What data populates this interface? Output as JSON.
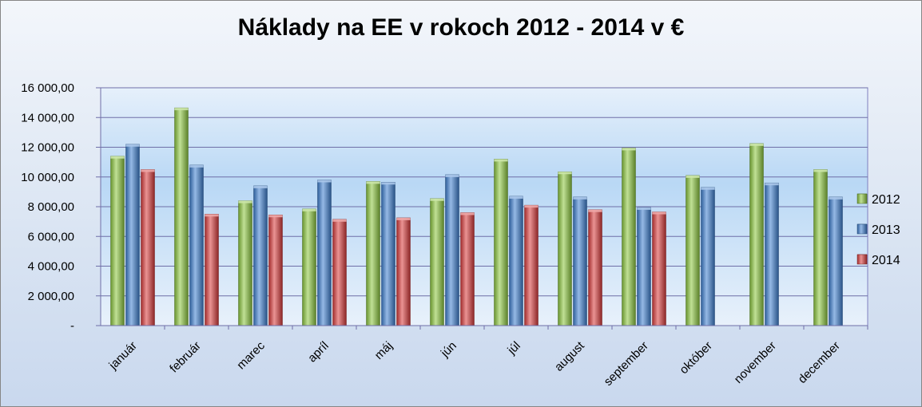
{
  "chart_data": {
    "type": "bar",
    "title": "Náklady na EE v rokoch 2012 - 2014 v €",
    "xlabel": "",
    "ylabel": "",
    "ylim": [
      0,
      16000
    ],
    "y_ticks": [
      0,
      2000,
      4000,
      6000,
      8000,
      10000,
      12000,
      14000,
      16000
    ],
    "y_tick_labels": [
      "-",
      "2 000,00",
      "4 000,00",
      "6 000,00",
      "8 000,00",
      "10 000,00",
      "12 000,00",
      "14 000,00",
      "16 000,00"
    ],
    "categories": [
      "január",
      "február",
      "marec",
      "apríl",
      "máj",
      "jún",
      "júl",
      "august",
      "september",
      "október",
      "november",
      "december"
    ],
    "series": [
      {
        "name": "2012",
        "color": "#8cc63f",
        "values": [
          11400,
          14650,
          8400,
          7850,
          9700,
          8550,
          11200,
          10350,
          11950,
          10100,
          12250,
          10500
        ]
      },
      {
        "name": "2013",
        "color": "#3f7fcf",
        "values": [
          12200,
          10800,
          9400,
          9800,
          9650,
          10150,
          8700,
          8650,
          7950,
          9300,
          9600,
          8650
        ]
      },
      {
        "name": "2014",
        "color": "#d83b3b",
        "values": [
          10500,
          7500,
          7450,
          7150,
          7250,
          7600,
          8100,
          7800,
          7650,
          null,
          null,
          null
        ]
      }
    ],
    "grid": true,
    "legend_position": "right"
  }
}
